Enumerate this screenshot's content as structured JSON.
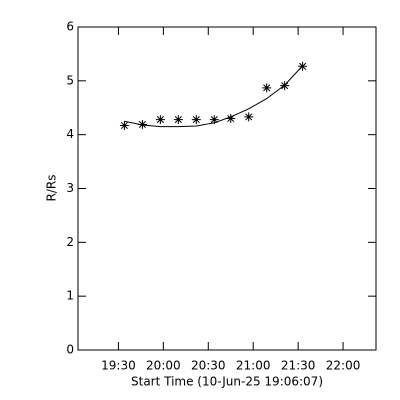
{
  "chart_data": {
    "type": "scatter",
    "x_label": "Start Time (10-Jun-25 19:06:07)",
    "y_label": "R/Rs",
    "xlim": [
      "19:03",
      "22:22"
    ],
    "xticks": [
      "19:30",
      "20:00",
      "20:30",
      "21:00",
      "21:30",
      "22:00"
    ],
    "ylim": [
      0,
      6
    ],
    "yticks": [
      0,
      1,
      2,
      3,
      4,
      5,
      6
    ],
    "series": [
      {
        "mode": "markers",
        "color": "#000000",
        "x": [
          "19:34",
          "19:46",
          "19:58",
          "20:10",
          "20:22",
          "20:34",
          "20:45",
          "20:57",
          "21:09",
          "21:21",
          "21:33"
        ],
        "values": [
          4.17,
          4.19,
          4.28,
          4.28,
          4.28,
          4.28,
          4.3,
          4.33,
          4.87,
          4.91,
          5.27
        ]
      },
      {
        "mode": "line",
        "color": "#000000",
        "x": [
          "19:34",
          "19:46",
          "19:58",
          "20:10",
          "20:22",
          "20:34",
          "20:45",
          "20:57",
          "21:09",
          "21:21",
          "21:33"
        ],
        "values": [
          4.25,
          4.18,
          4.15,
          4.15,
          4.16,
          4.22,
          4.33,
          4.48,
          4.67,
          4.92,
          5.28
        ]
      }
    ]
  }
}
